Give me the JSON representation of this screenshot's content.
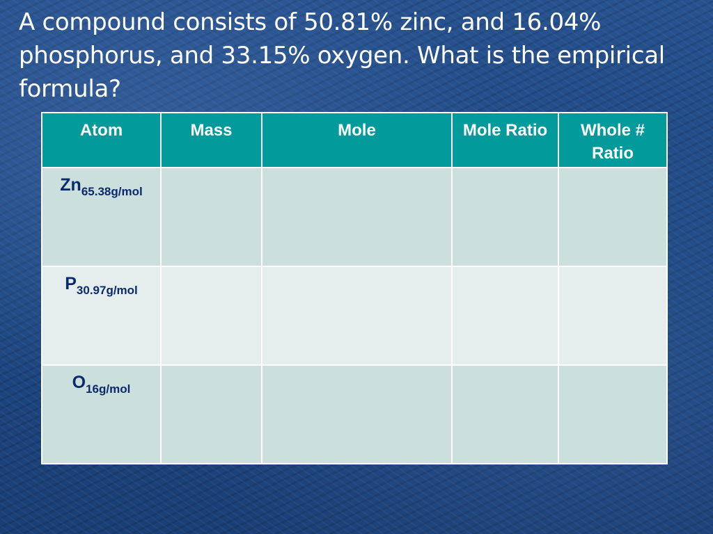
{
  "slide": {
    "title": "A compound consists of 50.81% zinc, and 16.04% phosphorus, and 33.15% oxygen. What is the empirical formula?"
  },
  "table": {
    "headers": [
      "Atom",
      "Mass",
      "Mole",
      "Mole Ratio",
      "Whole # Ratio"
    ],
    "rows": [
      {
        "symbol": "Zn",
        "molar_mass": "65.38g/mol",
        "mass": "",
        "mole": "",
        "mole_ratio": "",
        "whole_ratio": ""
      },
      {
        "symbol": "P",
        "molar_mass": "30.97g/mol",
        "mass": "",
        "mole": "",
        "mole_ratio": "",
        "whole_ratio": ""
      },
      {
        "symbol": "O",
        "molar_mass": "16g/mol",
        "mass": "",
        "mole": "",
        "mole_ratio": "",
        "whole_ratio": ""
      }
    ]
  },
  "colors": {
    "background": "#1f4a86",
    "header_fill": "#029a9a",
    "row_fill_dark": "#cbdfdd",
    "row_fill_light": "#e6eeed",
    "atom_text": "#0a2a6e"
  }
}
